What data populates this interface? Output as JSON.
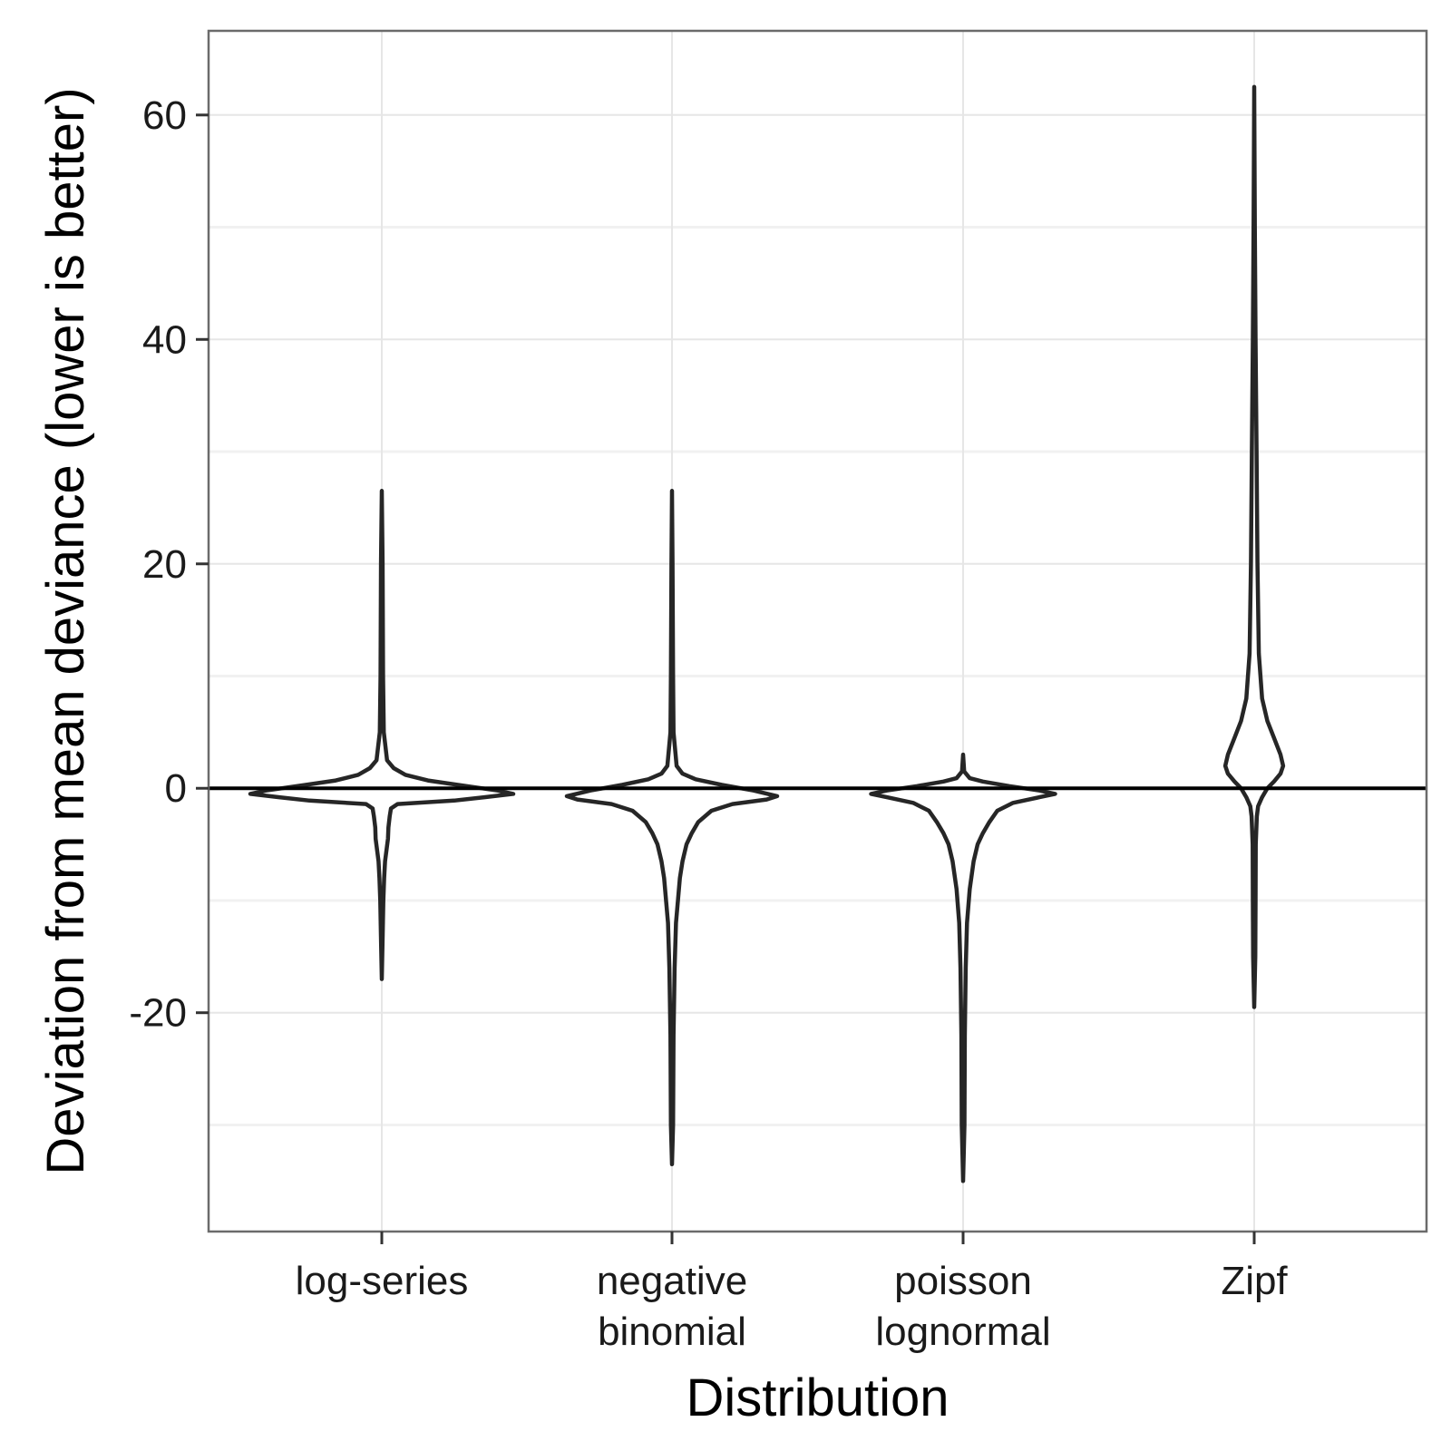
{
  "chart_data": {
    "type": "violin",
    "xlabel": "Distribution",
    "ylabel": "Deviation from mean deviance (lower is better)",
    "categories": [
      [
        "log-series"
      ],
      [
        "negative",
        "binomial"
      ],
      [
        "poisson",
        "lognormal"
      ],
      [
        "Zipf"
      ]
    ],
    "ylim": [
      -39.5,
      67.5
    ],
    "yticks": [
      -20,
      0,
      20,
      40,
      60
    ],
    "y_minor_gridlines": [
      -30,
      -10,
      10,
      30,
      50
    ],
    "grid": true,
    "reference_line_y": 0,
    "colors": {
      "outline": "#262626",
      "grid": "#e6e6e6",
      "panel_border": "#6b6b6b",
      "fill": "#ffffff"
    },
    "violins": [
      {
        "category": "log-series",
        "profile": [
          [
            26.5,
            0
          ],
          [
            20,
            0.006
          ],
          [
            10,
            0.01
          ],
          [
            5,
            0.015
          ],
          [
            2.5,
            0.04
          ],
          [
            1.8,
            0.09
          ],
          [
            1.2,
            0.18
          ],
          [
            0.7,
            0.35
          ],
          [
            0.3,
            0.58
          ],
          [
            -0.2,
            0.88
          ],
          [
            -0.5,
            1.0
          ],
          [
            -0.8,
            0.78
          ],
          [
            -1.1,
            0.55
          ],
          [
            -1.4,
            0.12
          ],
          [
            -1.8,
            0.07
          ],
          [
            -2.5,
            0.06
          ],
          [
            -3.5,
            0.05
          ],
          [
            -4.5,
            0.047
          ],
          [
            -5.5,
            0.036
          ],
          [
            -6.5,
            0.025
          ],
          [
            -8,
            0.018
          ],
          [
            -10,
            0.012
          ],
          [
            -13,
            0.007
          ],
          [
            -17,
            0
          ]
        ]
      },
      {
        "category": "negative binomial",
        "profile": [
          [
            26.5,
            0
          ],
          [
            20,
            0.004
          ],
          [
            10,
            0.008
          ],
          [
            5,
            0.012
          ],
          [
            2,
            0.035
          ],
          [
            1.3,
            0.08
          ],
          [
            0.8,
            0.18
          ],
          [
            0.3,
            0.38
          ],
          [
            -0.2,
            0.62
          ],
          [
            -0.7,
            0.8
          ],
          [
            -1,
            0.72
          ],
          [
            -1.4,
            0.46
          ],
          [
            -2,
            0.3
          ],
          [
            -3,
            0.2
          ],
          [
            -4,
            0.15
          ],
          [
            -5,
            0.11
          ],
          [
            -6.5,
            0.08
          ],
          [
            -8,
            0.06
          ],
          [
            -12,
            0.03
          ],
          [
            -16,
            0.02
          ],
          [
            -22,
            0.012
          ],
          [
            -30,
            0.008
          ],
          [
            -33.5,
            0
          ]
        ]
      },
      {
        "category": "poisson lognormal",
        "profile": [
          [
            3,
            0
          ],
          [
            1.5,
            0.008
          ],
          [
            0.9,
            0.05
          ],
          [
            0.6,
            0.15
          ],
          [
            0.2,
            0.35
          ],
          [
            -0.2,
            0.58
          ],
          [
            -0.5,
            0.7
          ],
          [
            -0.8,
            0.58
          ],
          [
            -1.3,
            0.38
          ],
          [
            -2,
            0.26
          ],
          [
            -3,
            0.2
          ],
          [
            -4,
            0.15
          ],
          [
            -5,
            0.11
          ],
          [
            -6.5,
            0.08
          ],
          [
            -9,
            0.05
          ],
          [
            -12,
            0.03
          ],
          [
            -16,
            0.02
          ],
          [
            -22,
            0.013
          ],
          [
            -30,
            0.01
          ],
          [
            -35,
            0
          ]
        ]
      },
      {
        "category": "Zipf",
        "profile": [
          [
            62.5,
            0
          ],
          [
            50,
            0.005
          ],
          [
            40,
            0.01
          ],
          [
            30,
            0.018
          ],
          [
            20,
            0.025
          ],
          [
            12,
            0.035
          ],
          [
            8,
            0.06
          ],
          [
            6,
            0.1
          ],
          [
            4.5,
            0.15
          ],
          [
            3,
            0.2
          ],
          [
            2,
            0.22
          ],
          [
            1.3,
            0.2
          ],
          [
            0.6,
            0.15
          ],
          [
            0,
            0.1
          ],
          [
            -0.8,
            0.06
          ],
          [
            -1.6,
            0.03
          ],
          [
            -2.5,
            0.02
          ],
          [
            -5,
            0.012
          ],
          [
            -10,
            0.01
          ],
          [
            -15,
            0.008
          ],
          [
            -19.5,
            0
          ]
        ]
      }
    ]
  }
}
